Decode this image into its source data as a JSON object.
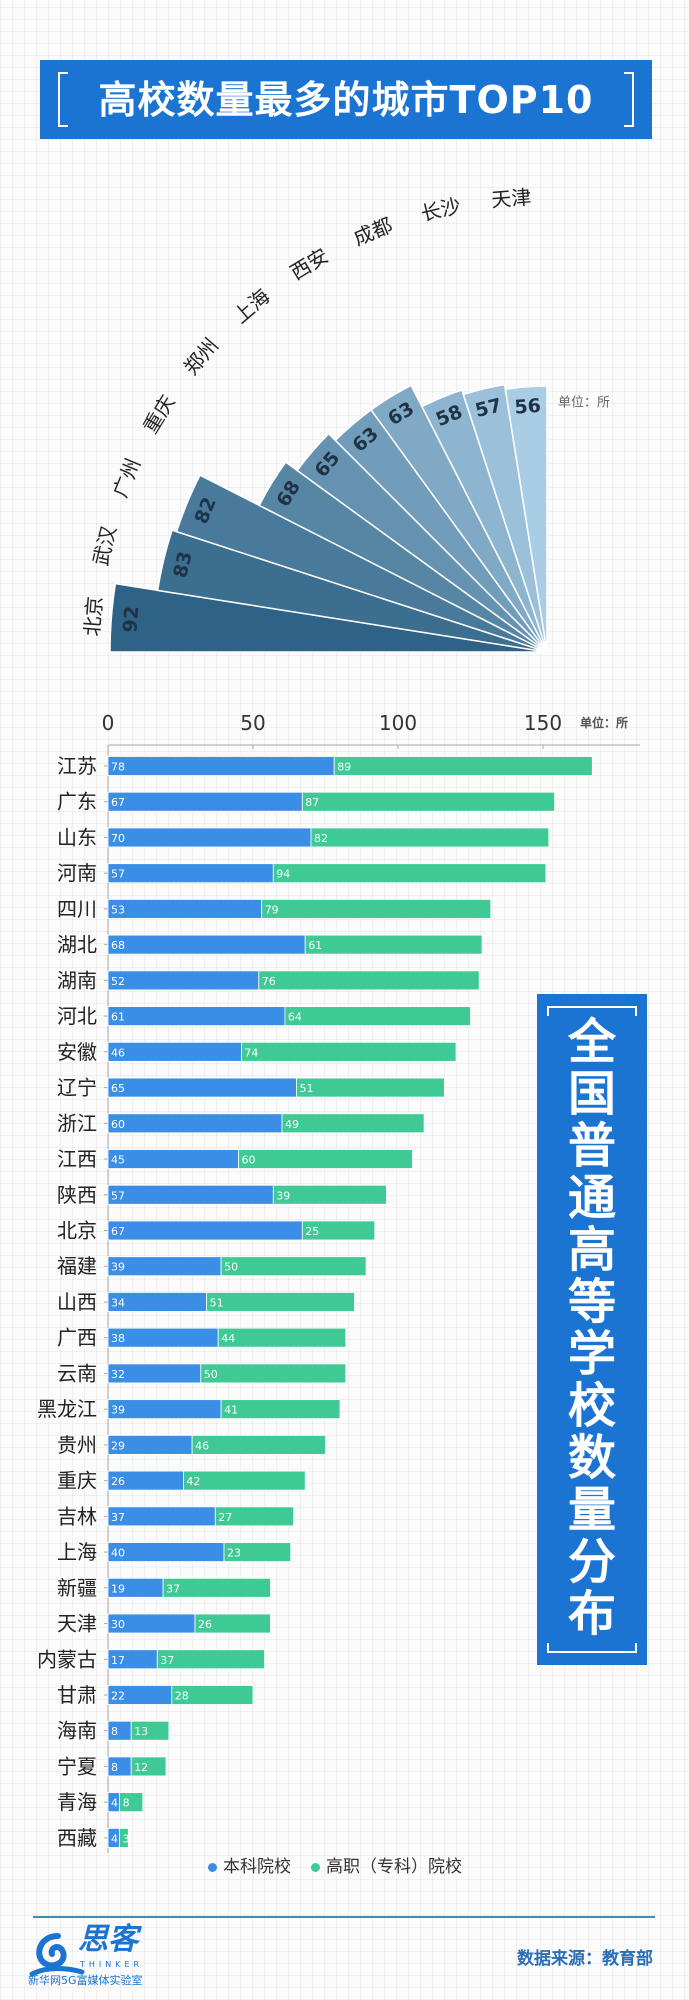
{
  "fan_title": "高校数量最多的城市TOP10",
  "bar_title_chars": [
    "全",
    "国",
    "普",
    "通",
    "高",
    "等",
    "学",
    "校",
    "数",
    "量",
    "分",
    "布"
  ],
  "source": "数据来源：教育部",
  "logo": {
    "name": "思客",
    "en": "THINKER",
    "sub": "新华网5G富媒体实验室"
  },
  "colors": {
    "title_bg": "#1b74d1",
    "undergrad": "#3a8ee6",
    "vocational": "#3ec995",
    "fan_dark": "#2e6286",
    "fan_light": "#a9cde4"
  },
  "chart_data": [
    {
      "type": "bar",
      "subtype": "radial-fan",
      "title": "高校数量最多的城市TOP10",
      "unit": "单位：所",
      "categories": [
        "北京",
        "武汉",
        "广州",
        "重庆",
        "郑州",
        "上海",
        "西安",
        "成都",
        "长沙",
        "天津"
      ],
      "values": [
        92,
        83,
        82,
        68,
        65,
        63,
        63,
        58,
        57,
        56
      ]
    },
    {
      "type": "bar",
      "subtype": "horizontal-stacked",
      "title": "全国普通高等学校数量分布",
      "unit": "单位：所",
      "xlim": [
        0,
        183
      ],
      "xticks": [
        "0",
        "50",
        "100",
        "150"
      ],
      "xtick_values": [
        0,
        50,
        100,
        150
      ],
      "grid": false,
      "legend": "bottom",
      "categories": [
        "江苏",
        "广东",
        "山东",
        "河南",
        "四川",
        "湖北",
        "湖南",
        "河北",
        "安徽",
        "辽宁",
        "浙江",
        "江西",
        "陕西",
        "北京",
        "福建",
        "山西",
        "广西",
        "云南",
        "黑龙江",
        "贵州",
        "重庆",
        "吉林",
        "上海",
        "新疆",
        "天津",
        "内蒙古",
        "甘肃",
        "海南",
        "宁夏",
        "青海",
        "西藏"
      ],
      "series": [
        {
          "name": "本科院校",
          "values": [
            78,
            67,
            70,
            57,
            53,
            68,
            52,
            61,
            46,
            65,
            60,
            45,
            57,
            67,
            39,
            34,
            38,
            32,
            39,
            29,
            26,
            37,
            40,
            19,
            30,
            17,
            22,
            8,
            8,
            4,
            4
          ]
        },
        {
          "name": "高职（专科）院校",
          "values": [
            89,
            87,
            82,
            94,
            79,
            61,
            76,
            64,
            74,
            51,
            49,
            60,
            39,
            25,
            50,
            51,
            44,
            50,
            41,
            46,
            42,
            27,
            23,
            37,
            26,
            37,
            28,
            13,
            12,
            8,
            3
          ]
        }
      ]
    }
  ]
}
